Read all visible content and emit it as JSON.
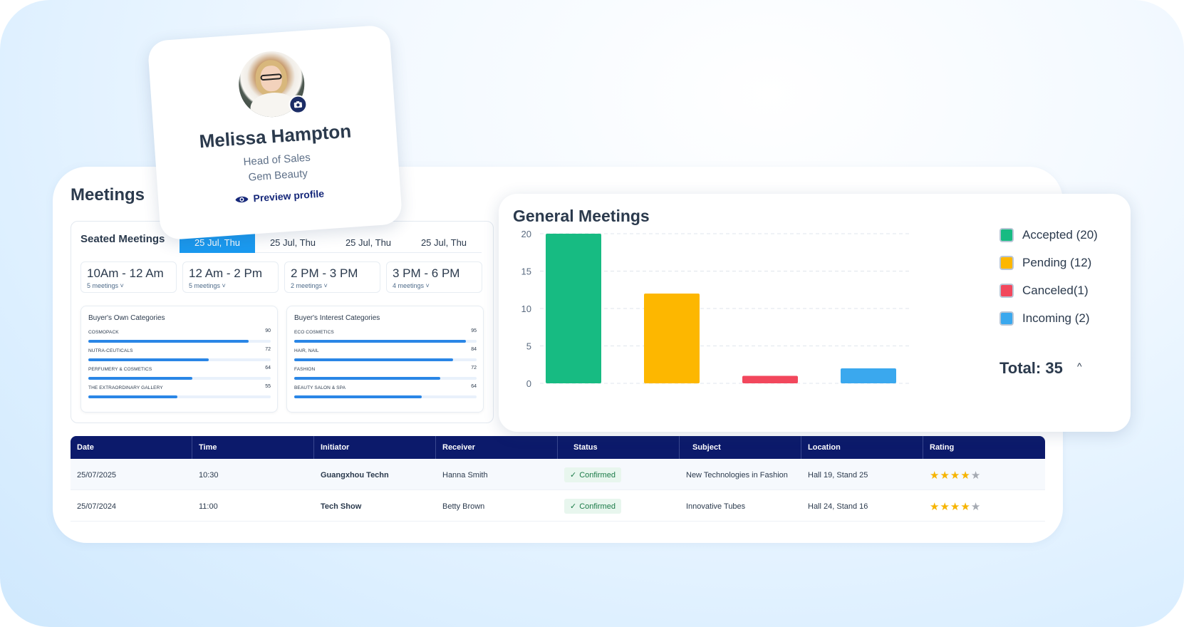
{
  "profile": {
    "name": "Melissa Hampton",
    "role": "Head of Sales",
    "company": "Gem Beauty",
    "preview_label": "Preview profile"
  },
  "meetings": {
    "title": "Meetings",
    "seated_title": "Seated Meetings",
    "date_tabs": [
      "25 Jul, Thu",
      "25 Jul, Thu",
      "25 Jul, Thu",
      "25 Jul, Thu"
    ],
    "active_tab": 0,
    "slots": [
      {
        "time": "10Am - 12 Am",
        "count": "5 meetings ˅"
      },
      {
        "time": "12 Am - 2 Pm",
        "count": "5 meetings ˅"
      },
      {
        "time": "2 PM - 3 PM",
        "count": "2 meetings ˅"
      },
      {
        "time": "3 PM - 6 PM",
        "count": "4 meetings ˅"
      }
    ],
    "own_categories": {
      "title": "Buyer's Own Categories",
      "items": [
        {
          "label": "COSMOPACK",
          "value": "90",
          "fill": 0.88
        },
        {
          "label": "NUTRA-CEUTICALS",
          "value": "72",
          "fill": 0.66
        },
        {
          "label": "PERFUMERY & COSMETICS",
          "value": "64",
          "fill": 0.57
        },
        {
          "label": "THE EXTRAORDINARY GALLERY",
          "value": "55",
          "fill": 0.49
        }
      ]
    },
    "interest_categories": {
      "title": "Buyer's Interest Categories",
      "items": [
        {
          "label": "ECO COSMETICS",
          "value": "95",
          "fill": 0.94
        },
        {
          "label": "HAIR, NAIL",
          "value": "84",
          "fill": 0.87
        },
        {
          "label": "FASHION",
          "value": "72",
          "fill": 0.8
        },
        {
          "label": "BEAUTY SALON & SPA",
          "value": "64",
          "fill": 0.7
        }
      ]
    }
  },
  "general": {
    "title": "General Meetings",
    "legend": [
      {
        "label": "Accepted (20)",
        "color": "#17bb82"
      },
      {
        "label": "Pending (12)",
        "color": "#fdb700"
      },
      {
        "label": "Canceled(1)",
        "color": "#f2475c"
      },
      {
        "label": "Incoming (2)",
        "color": "#3aa8ee"
      }
    ],
    "total": "Total: 35",
    "caret": "^"
  },
  "chart_data": {
    "type": "bar",
    "categories": [
      "Accepted",
      "Pending",
      "Canceled",
      "Incoming"
    ],
    "values": [
      20,
      12,
      1,
      2
    ],
    "colors": [
      "#17bb82",
      "#fdb700",
      "#f2475c",
      "#3aa8ee"
    ],
    "yticks": [
      "0",
      "5",
      "10",
      "15",
      "20"
    ],
    "ylim": [
      0,
      20
    ],
    "grid": true,
    "legend": "right"
  },
  "table": {
    "headers": [
      "Date",
      "Time",
      "Initiator",
      "Receiver",
      "Status",
      "Subject",
      "Location",
      "Rating"
    ],
    "rows": [
      {
        "date": "25/07/2025",
        "time": "10:30",
        "initiator": "Guangxhou Techn",
        "receiver": "Hanna Smith",
        "status": "Confirmed",
        "subject": "New Technologies in Fashion",
        "location": "Hall 19, Stand 25",
        "rating": 4
      },
      {
        "date": "25/07/2024",
        "time": "11:00",
        "initiator": "Tech Show",
        "receiver": "Betty Brown",
        "status": "Confirmed",
        "subject": "Innovative Tubes",
        "location": "Hall 24, Stand 16",
        "rating": 4
      }
    ]
  }
}
